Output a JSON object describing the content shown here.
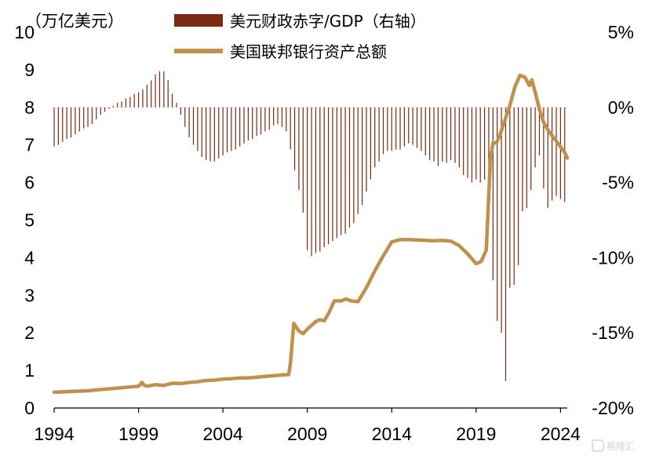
{
  "chart_data": {
    "type": "bar+line",
    "unit_label": "（万亿美元）",
    "x_ticks": [
      "1994",
      "1999",
      "2004",
      "2009",
      "2014",
      "2019",
      "2024"
    ],
    "left_axis": {
      "range": [
        0,
        10
      ],
      "ticks": [
        "0",
        "1",
        "2",
        "3",
        "4",
        "5",
        "6",
        "7",
        "8",
        "9",
        "10"
      ]
    },
    "right_axis": {
      "range": [
        -20,
        5
      ],
      "ticks": [
        "-20%",
        "-15%",
        "-10%",
        "-5%",
        "0%",
        "5%"
      ]
    },
    "legend": {
      "position": "top-center"
    },
    "colors": {
      "deficit": "#7a2a10",
      "assets": "#c0904d"
    },
    "series": [
      {
        "name": "美元财政赤字/GDP（右轴）",
        "axis": "right",
        "kind": "bar",
        "x": [
          1994.0,
          1994.25,
          1994.5,
          1994.75,
          1995.0,
          1995.25,
          1995.5,
          1995.75,
          1996.0,
          1996.25,
          1996.5,
          1996.75,
          1997.0,
          1997.25,
          1997.5,
          1997.75,
          1998.0,
          1998.25,
          1998.5,
          1998.75,
          1999.0,
          1999.25,
          1999.5,
          1999.75,
          2000.0,
          2000.25,
          2000.5,
          2000.75,
          2001.0,
          2001.25,
          2001.5,
          2001.75,
          2002.0,
          2002.25,
          2002.5,
          2002.75,
          2003.0,
          2003.25,
          2003.5,
          2003.75,
          2004.0,
          2004.25,
          2004.5,
          2004.75,
          2005.0,
          2005.25,
          2005.5,
          2005.75,
          2006.0,
          2006.25,
          2006.5,
          2006.75,
          2007.0,
          2007.25,
          2007.5,
          2007.75,
          2008.0,
          2008.25,
          2008.5,
          2008.75,
          2009.0,
          2009.25,
          2009.5,
          2009.75,
          2010.0,
          2010.25,
          2010.5,
          2010.75,
          2011.0,
          2011.25,
          2011.5,
          2011.75,
          2012.0,
          2012.25,
          2012.5,
          2012.75,
          2013.0,
          2013.25,
          2013.5,
          2013.75,
          2014.0,
          2014.25,
          2014.5,
          2014.75,
          2015.0,
          2015.25,
          2015.5,
          2015.75,
          2016.0,
          2016.25,
          2016.5,
          2016.75,
          2017.0,
          2017.25,
          2017.5,
          2017.75,
          2018.0,
          2018.25,
          2018.5,
          2018.75,
          2019.0,
          2019.25,
          2019.5,
          2019.75,
          2020.0,
          2020.25,
          2020.5,
          2020.75,
          2021.0,
          2021.25,
          2021.5,
          2021.75,
          2022.0,
          2022.25,
          2022.5,
          2022.75,
          2023.0,
          2023.25,
          2023.5,
          2023.75,
          2024.0,
          2024.25
        ],
        "values": [
          -2.6,
          -2.5,
          -2.3,
          -2.1,
          -2.0,
          -1.8,
          -1.6,
          -1.4,
          -1.3,
          -1.1,
          -0.8,
          -0.5,
          -0.3,
          -0.1,
          0.1,
          0.3,
          0.4,
          0.6,
          0.7,
          0.9,
          1.0,
          1.2,
          1.5,
          1.8,
          2.2,
          2.4,
          2.4,
          1.8,
          0.9,
          0.3,
          -0.5,
          -1.3,
          -2.0,
          -2.5,
          -2.9,
          -3.3,
          -3.5,
          -3.6,
          -3.6,
          -3.4,
          -3.2,
          -3.0,
          -2.9,
          -2.8,
          -2.6,
          -2.4,
          -2.2,
          -2.1,
          -1.9,
          -1.8,
          -1.6,
          -1.5,
          -1.2,
          -1.1,
          -1.3,
          -1.6,
          -2.8,
          -4.2,
          -5.5,
          -7.0,
          -9.5,
          -9.9,
          -9.7,
          -9.6,
          -9.3,
          -9.1,
          -8.9,
          -8.7,
          -8.5,
          -8.4,
          -8.0,
          -7.7,
          -7.1,
          -6.5,
          -5.6,
          -4.8,
          -4.0,
          -3.6,
          -3.1,
          -2.9,
          -2.9,
          -2.8,
          -2.8,
          -2.6,
          -2.4,
          -2.5,
          -2.7,
          -2.9,
          -3.2,
          -3.5,
          -3.6,
          -3.9,
          -3.6,
          -3.7,
          -3.5,
          -3.7,
          -4.0,
          -4.5,
          -4.7,
          -5.0,
          -4.8,
          -5.0,
          -4.8,
          -4.6,
          -11.5,
          -14.2,
          -15.0,
          -18.2,
          -12.0,
          -11.8,
          -10.5,
          -6.9,
          -6.7,
          -5.5,
          -4.0,
          -3.2,
          -5.4,
          -6.7,
          -6.2,
          -5.9,
          -6.1,
          -6.3
        ]
      },
      {
        "name": "美国联邦银行资产总额",
        "axis": "left",
        "kind": "line",
        "x": [
          1994.0,
          1994.5,
          1995.0,
          1995.5,
          1996.0,
          1996.5,
          1997.0,
          1997.5,
          1998.0,
          1998.5,
          1999.0,
          1999.1,
          1999.2,
          1999.35,
          1999.5,
          2000.0,
          2000.5,
          2001.0,
          2001.5,
          2002.0,
          2002.5,
          2003.0,
          2003.5,
          2004.0,
          2004.5,
          2005.0,
          2005.5,
          2006.0,
          2006.5,
          2007.0,
          2007.5,
          2007.9,
          2008.0,
          2008.2,
          2008.5,
          2008.75,
          2009.0,
          2009.25,
          2009.5,
          2009.75,
          2010.0,
          2010.3,
          2010.6,
          2011.0,
          2011.3,
          2011.6,
          2012.0,
          2012.5,
          2013.0,
          2013.5,
          2014.0,
          2014.5,
          2015.0,
          2015.5,
          2016.0,
          2016.5,
          2017.0,
          2017.5,
          2018.0,
          2018.5,
          2019.0,
          2019.3,
          2019.6,
          2019.85,
          2020.0,
          2020.2,
          2020.4,
          2020.7,
          2021.0,
          2021.3,
          2021.6,
          2021.9,
          2022.15,
          2022.3,
          2022.5,
          2022.75,
          2023.0,
          2023.25,
          2023.5,
          2023.75,
          2024.0,
          2024.25,
          2024.4
        ],
        "values": [
          0.42,
          0.43,
          0.44,
          0.45,
          0.46,
          0.48,
          0.5,
          0.52,
          0.54,
          0.56,
          0.58,
          0.62,
          0.68,
          0.6,
          0.58,
          0.62,
          0.6,
          0.66,
          0.65,
          0.68,
          0.7,
          0.73,
          0.74,
          0.77,
          0.78,
          0.8,
          0.8,
          0.82,
          0.84,
          0.86,
          0.88,
          0.89,
          1.2,
          2.25,
          2.05,
          1.98,
          2.1,
          2.2,
          2.3,
          2.35,
          2.32,
          2.55,
          2.85,
          2.85,
          2.9,
          2.85,
          2.83,
          3.2,
          3.65,
          4.05,
          4.42,
          4.48,
          4.48,
          4.47,
          4.46,
          4.45,
          4.46,
          4.44,
          4.32,
          4.1,
          3.84,
          3.9,
          4.2,
          6.65,
          7.05,
          7.05,
          7.25,
          7.65,
          8.05,
          8.55,
          8.85,
          8.8,
          8.58,
          8.73,
          8.4,
          7.95,
          7.6,
          7.4,
          7.25,
          7.1,
          6.95,
          6.8,
          6.65
        ]
      }
    ]
  },
  "watermark": {
    "text": "格隆汇"
  }
}
